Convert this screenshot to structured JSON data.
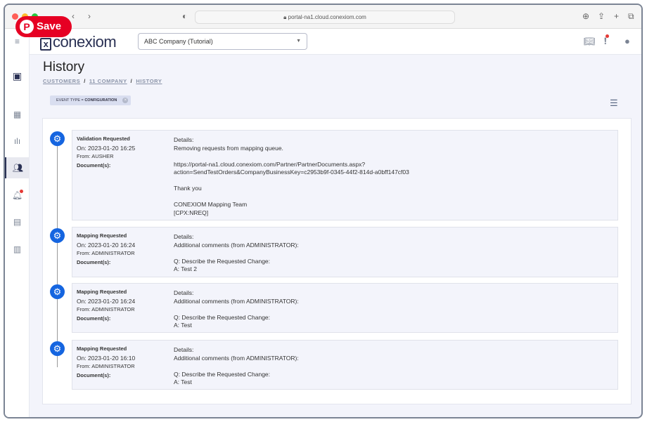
{
  "browser": {
    "url": "portal-na1.cloud.conexiom.com"
  },
  "pinterest": {
    "label": "Save"
  },
  "header": {
    "logo": "conexiom",
    "company_select": "ABC Company (Tutorial)"
  },
  "page": {
    "title": "History",
    "breadcrumbs": [
      "CUSTOMERS",
      "11 COMPANY",
      "HISTORY"
    ]
  },
  "filter_chip": {
    "key": "EVENT TYPE = ",
    "value": "CONFIGURATION"
  },
  "events": [
    {
      "type": "Validation Requested",
      "on": "On: 2023-01-20 16:25",
      "from": "From: AUSHER",
      "documents": "Document(s):",
      "details": [
        "Details:",
        "Removing requests from mapping queue.",
        "",
        "https://portal-na1.cloud.conexiom.com/Partner/PartnerDocuments.aspx?",
        "action=SendTestOrders&CompanyBusinessKey=c2953b9f-0345-44f2-814d-a0bff147cf03",
        "",
        "Thank you",
        "",
        "CONEXIOM Mapping Team",
        "[CPX:NREQ]"
      ]
    },
    {
      "type": "Mapping Requested",
      "on": "On: 2023-01-20 16:24",
      "from": "From: ADMINISTRATOR",
      "documents": "Document(s):",
      "details": [
        "Details:",
        "Additional comments (from ADMINISTRATOR):",
        "",
        "Q: Describe the Requested Change:",
        "A: Test 2"
      ]
    },
    {
      "type": "Mapping Requested",
      "on": "On: 2023-01-20 16:24",
      "from": "From: ADMINISTRATOR",
      "documents": "Document(s):",
      "details": [
        "Details:",
        "Additional comments (from ADMINISTRATOR):",
        "",
        "Q: Describe the Requested Change:",
        "A: Test"
      ]
    },
    {
      "type": "Mapping Requested",
      "on": "On: 2023-01-20 16:10",
      "from": "From: ADMINISTRATOR",
      "documents": "Document(s):",
      "details": [
        "Details:",
        "Additional comments (from ADMINISTRATOR):",
        "",
        "Q: Describe the Requested Change:",
        "A: Test"
      ]
    }
  ],
  "colors": {
    "accent": "#1565e0",
    "nav": "#2a3154",
    "notification": "#e53935",
    "pinterest": "#e60023"
  }
}
